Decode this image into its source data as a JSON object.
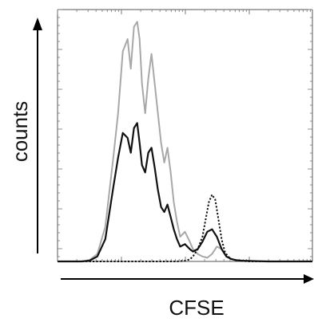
{
  "chart_data": {
    "type": "line",
    "xlabel": "CFSE",
    "ylabel": "counts",
    "x_scale": "log",
    "grid": false,
    "legend": "none",
    "xlim": [
      0,
      320
    ],
    "ylim": [
      0,
      1
    ],
    "series": [
      {
        "style": "solid",
        "color": "#a8a8a8",
        "x": [
          0,
          30,
          40,
          50,
          60,
          70,
          76,
          82,
          88,
          92,
          96,
          100,
          103,
          106,
          110,
          114,
          118,
          122,
          126,
          130,
          134,
          138,
          142,
          146,
          150,
          154,
          160,
          166,
          170,
          176,
          182,
          188,
          194,
          200,
          206,
          212,
          218,
          224,
          232,
          240,
          252,
          264,
          280,
          300,
          320
        ],
        "y": [
          0,
          0,
          0.005,
          0.03,
          0.14,
          0.42,
          0.6,
          0.85,
          0.9,
          0.78,
          0.95,
          0.97,
          0.9,
          0.72,
          0.6,
          0.74,
          0.84,
          0.72,
          0.6,
          0.48,
          0.4,
          0.46,
          0.36,
          0.24,
          0.16,
          0.1,
          0.12,
          0.08,
          0.05,
          0.03,
          0.02,
          0.015,
          0.03,
          0.06,
          0.05,
          0.02,
          0.01,
          0.005,
          0.003,
          0.002,
          0.001,
          0,
          0,
          0,
          0
        ]
      },
      {
        "style": "solid",
        "color": "#111111",
        "x": [
          0,
          30,
          40,
          50,
          60,
          70,
          76,
          82,
          88,
          92,
          96,
          100,
          103,
          106,
          110,
          114,
          118,
          122,
          126,
          130,
          134,
          138,
          142,
          146,
          150,
          154,
          160,
          166,
          170,
          176,
          182,
          188,
          194,
          200,
          206,
          212,
          218,
          224,
          232,
          240,
          252,
          264,
          280,
          300,
          320
        ],
        "y": [
          0,
          0,
          0.003,
          0.02,
          0.09,
          0.3,
          0.42,
          0.52,
          0.5,
          0.44,
          0.54,
          0.56,
          0.48,
          0.39,
          0.36,
          0.44,
          0.46,
          0.38,
          0.29,
          0.22,
          0.2,
          0.23,
          0.18,
          0.13,
          0.09,
          0.06,
          0.07,
          0.05,
          0.04,
          0.05,
          0.08,
          0.12,
          0.13,
          0.1,
          0.05,
          0.02,
          0.01,
          0.005,
          0.003,
          0.002,
          0.001,
          0,
          0,
          0,
          0
        ]
      },
      {
        "style": "dotted",
        "color": "#111111",
        "x": [
          0,
          150,
          160,
          166,
          170,
          176,
          182,
          186,
          190,
          194,
          198,
          202,
          206,
          210,
          214,
          218,
          224,
          232,
          240,
          260,
          280,
          300,
          320
        ],
        "y": [
          0,
          0,
          0.003,
          0.008,
          0.02,
          0.05,
          0.1,
          0.17,
          0.24,
          0.27,
          0.25,
          0.17,
          0.09,
          0.04,
          0.02,
          0.01,
          0.005,
          0.002,
          0,
          0,
          0,
          0,
          0
        ]
      }
    ]
  }
}
